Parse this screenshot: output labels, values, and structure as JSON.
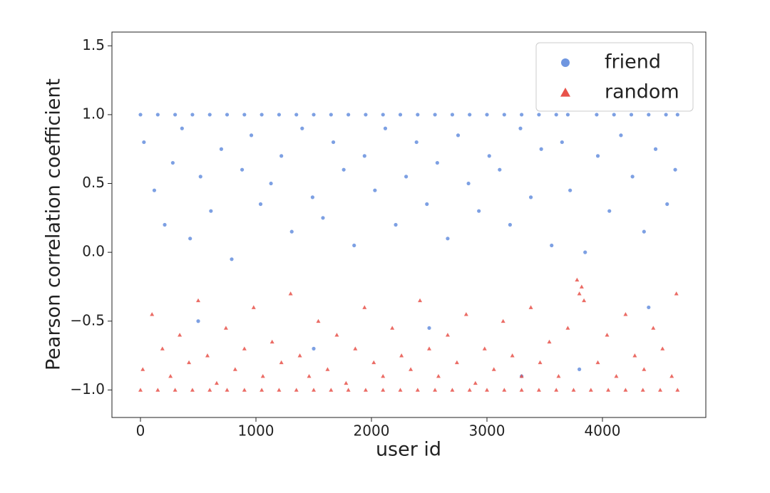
{
  "chart_data": {
    "type": "scatter",
    "x_label": "user id",
    "y_label": "Pearson correlation coefficient",
    "xlim": [
      -247,
      4895
    ],
    "ylim": [
      -1.2,
      1.6
    ],
    "xticks": [
      0,
      1000,
      2000,
      3000,
      4000
    ],
    "yticks": [
      {
        "value": -1,
        "label": "−1.0"
      },
      {
        "value": -0.5,
        "label": "−0.5"
      },
      {
        "value": 0,
        "label": "0.0"
      },
      0.5,
      {
        "value": 1,
        "label": "1.0"
      },
      1.5
    ],
    "legend_position": "upper right",
    "series": [
      {
        "name": "friend",
        "color": "#6f96e0",
        "marker": "circle",
        "x": [
          0,
          150,
          300,
          450,
          600,
          750,
          900,
          1050,
          1200,
          1350,
          1500,
          1650,
          1800,
          1950,
          2100,
          2250,
          2400,
          2550,
          2700,
          2850,
          3000,
          3150,
          3300,
          3450,
          3600,
          3700,
          3950,
          4100,
          4250,
          4400,
          4550,
          4650,
          30,
          120,
          210,
          280,
          360,
          430,
          520,
          610,
          700,
          790,
          880,
          960,
          1040,
          1130,
          1220,
          1310,
          1400,
          1490,
          1580,
          1670,
          1760,
          1850,
          1940,
          2030,
          2120,
          2210,
          2300,
          2390,
          2480,
          2570,
          2660,
          2750,
          2840,
          2930,
          3020,
          3110,
          3200,
          3290,
          3380,
          3470,
          3560,
          3650,
          3720,
          3850,
          3960,
          4060,
          4160,
          4260,
          4360,
          4460,
          4560,
          4630,
          500,
          1500,
          2500,
          3300,
          3800,
          4400
        ],
        "values": [
          1,
          1,
          1,
          1,
          1,
          1,
          1,
          1,
          1,
          1,
          1,
          1,
          1,
          1,
          1,
          1,
          1,
          1,
          1,
          1,
          1,
          1,
          1,
          1,
          1,
          1,
          1,
          1,
          1,
          1,
          1,
          1,
          0.8,
          0.45,
          0.2,
          0.65,
          0.9,
          0.1,
          0.55,
          0.3,
          0.75,
          -0.05,
          0.6,
          0.85,
          0.35,
          0.5,
          0.7,
          0.15,
          0.9,
          0.4,
          0.25,
          0.8,
          0.6,
          0.05,
          0.7,
          0.45,
          0.9,
          0.2,
          0.55,
          0.8,
          0.35,
          0.65,
          0.1,
          0.85,
          0.5,
          0.3,
          0.7,
          0.6,
          0.2,
          0.9,
          0.4,
          0.75,
          0.05,
          0.8,
          0.45,
          0,
          0.7,
          0.3,
          0.85,
          0.55,
          0.15,
          0.75,
          0.35,
          0.6,
          -0.5,
          -0.7,
          -0.55,
          -0.9,
          -0.85,
          -0.4
        ]
      },
      {
        "name": "random",
        "color": "#e8524a",
        "marker": "triangle",
        "x": [
          0,
          150,
          300,
          450,
          600,
          750,
          900,
          1050,
          1200,
          1350,
          1500,
          1650,
          1800,
          1950,
          2100,
          2250,
          2400,
          2550,
          2700,
          2850,
          3000,
          3150,
          3300,
          3450,
          3600,
          3750,
          3900,
          4050,
          4200,
          4350,
          4500,
          4650,
          20,
          100,
          190,
          260,
          340,
          420,
          500,
          580,
          660,
          740,
          820,
          900,
          980,
          1060,
          1140,
          1220,
          1300,
          1380,
          1460,
          1540,
          1620,
          1700,
          1780,
          1860,
          1940,
          2020,
          2100,
          2180,
          2260,
          2340,
          2420,
          2500,
          2580,
          2660,
          2740,
          2820,
          2900,
          2980,
          3060,
          3140,
          3220,
          3300,
          3380,
          3460,
          3540,
          3620,
          3700,
          3780,
          3800,
          3820,
          3840,
          3960,
          4040,
          4120,
          4200,
          4280,
          4360,
          4440,
          4520,
          4600,
          4640
        ],
        "values": [
          -1,
          -1,
          -1,
          -1,
          -1,
          -1,
          -1,
          -1,
          -1,
          -1,
          -1,
          -1,
          -1,
          -1,
          -1,
          -1,
          -1,
          -1,
          -1,
          -1,
          -1,
          -1,
          -1,
          -1,
          -1,
          -1,
          -1,
          -1,
          -1,
          -1,
          -1,
          -1,
          -0.85,
          -0.45,
          -0.7,
          -0.9,
          -0.6,
          -0.8,
          -0.35,
          -0.75,
          -0.95,
          -0.55,
          -0.85,
          -0.7,
          -0.4,
          -0.9,
          -0.65,
          -0.8,
          -0.3,
          -0.75,
          -0.9,
          -0.5,
          -0.85,
          -0.6,
          -0.95,
          -0.7,
          -0.4,
          -0.8,
          -0.9,
          -0.55,
          -0.75,
          -0.85,
          -0.35,
          -0.7,
          -0.9,
          -0.6,
          -0.8,
          -0.45,
          -0.95,
          -0.7,
          -0.85,
          -0.5,
          -0.75,
          -0.9,
          -0.4,
          -0.8,
          -0.65,
          -0.9,
          -0.55,
          -0.2,
          -0.3,
          -0.25,
          -0.35,
          -0.8,
          -0.6,
          -0.9,
          -0.45,
          -0.75,
          -0.85,
          -0.55,
          -0.7,
          -0.9,
          -0.3
        ]
      }
    ]
  }
}
